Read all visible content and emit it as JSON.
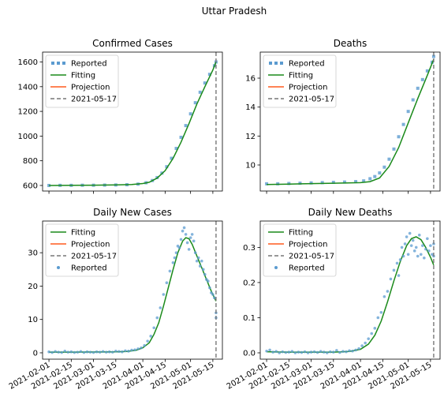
{
  "suptitle": "Uttar Pradesh",
  "colors": {
    "reported": "#5b9bd0",
    "fitting": "#1a8a1a",
    "projection": "#ff5a1f",
    "vline": "#777777"
  },
  "chart_data": [
    {
      "type": "line",
      "title": "Confirmed Cases",
      "xlim": [
        "2021-01-28",
        "2021-05-21"
      ],
      "ylim": [
        555,
        1680
      ],
      "yticks": [
        600,
        800,
        1000,
        1200,
        1400,
        1600
      ],
      "xticks": [
        "2021-02-01",
        "2021-02-15",
        "2021-03-01",
        "2021-03-15",
        "2021-04-01",
        "2021-04-15",
        "2021-05-01",
        "2021-05-15"
      ],
      "show_xtick_labels": false,
      "vline": "2021-05-17",
      "legend": {
        "placement": "top-left",
        "entries": [
          "Reported",
          "Fitting",
          "Projection",
          "2021-05-17"
        ]
      },
      "series": [
        {
          "name": "Reported",
          "style": "square-markers",
          "x": [
            "2021-02-01",
            "2021-02-08",
            "2021-02-15",
            "2021-02-22",
            "2021-03-01",
            "2021-03-08",
            "2021-03-15",
            "2021-03-22",
            "2021-03-29",
            "2021-04-03",
            "2021-04-07",
            "2021-04-10",
            "2021-04-13",
            "2021-04-16",
            "2021-04-19",
            "2021-04-22",
            "2021-04-25",
            "2021-04-28",
            "2021-05-01",
            "2021-05-04",
            "2021-05-07",
            "2021-05-10",
            "2021-05-13",
            "2021-05-16",
            "2021-05-17"
          ],
          "y": [
            600,
            601,
            601,
            602,
            602,
            603,
            604,
            606,
            611,
            622,
            640,
            664,
            700,
            752,
            820,
            900,
            990,
            1085,
            1180,
            1270,
            1355,
            1430,
            1500,
            1570,
            1600
          ]
        },
        {
          "name": "Fitting",
          "style": "line",
          "x": [
            "2021-02-01",
            "2021-02-15",
            "2021-03-01",
            "2021-03-15",
            "2021-03-25",
            "2021-04-01",
            "2021-04-05",
            "2021-04-10",
            "2021-04-15",
            "2021-04-20",
            "2021-04-25",
            "2021-04-30",
            "2021-05-05",
            "2021-05-10",
            "2021-05-15",
            "2021-05-17"
          ],
          "y": [
            600,
            601,
            602,
            604,
            608,
            616,
            626,
            660,
            720,
            820,
            950,
            1100,
            1260,
            1400,
            1535,
            1600
          ]
        },
        {
          "name": "Projection",
          "style": "line",
          "x": [],
          "y": []
        }
      ]
    },
    {
      "type": "line",
      "title": "Deaths",
      "xlim": [
        "2021-01-28",
        "2021-05-21"
      ],
      "ylim": [
        8.2,
        17.8
      ],
      "yticks": [
        10,
        12,
        14,
        16
      ],
      "xticks": [
        "2021-02-01",
        "2021-02-15",
        "2021-03-01",
        "2021-03-15",
        "2021-04-01",
        "2021-04-15",
        "2021-05-01",
        "2021-05-15"
      ],
      "show_xtick_labels": false,
      "vline": "2021-05-17",
      "legend": {
        "placement": "top-left",
        "entries": [
          "Reported",
          "Fitting",
          "Projection",
          "2021-05-17"
        ]
      },
      "series": [
        {
          "name": "Reported",
          "style": "square-markers",
          "x": [
            "2021-02-01",
            "2021-02-08",
            "2021-02-15",
            "2021-02-22",
            "2021-03-01",
            "2021-03-08",
            "2021-03-15",
            "2021-03-22",
            "2021-03-29",
            "2021-04-03",
            "2021-04-07",
            "2021-04-10",
            "2021-04-13",
            "2021-04-16",
            "2021-04-19",
            "2021-04-22",
            "2021-04-25",
            "2021-04-28",
            "2021-05-01",
            "2021-05-04",
            "2021-05-07",
            "2021-05-10",
            "2021-05-13",
            "2021-05-16",
            "2021-05-17"
          ],
          "y": [
            8.7,
            8.7,
            8.72,
            8.74,
            8.76,
            8.78,
            8.8,
            8.82,
            8.85,
            8.9,
            9.05,
            9.2,
            9.45,
            9.85,
            10.4,
            11.1,
            11.95,
            12.8,
            13.7,
            14.5,
            15.3,
            15.9,
            16.5,
            17.1,
            17.5
          ]
        },
        {
          "name": "Fitting",
          "style": "line",
          "x": [
            "2021-02-01",
            "2021-02-15",
            "2021-03-01",
            "2021-03-15",
            "2021-04-01",
            "2021-04-07",
            "2021-04-13",
            "2021-04-19",
            "2021-04-25",
            "2021-05-01",
            "2021-05-07",
            "2021-05-13",
            "2021-05-17"
          ],
          "y": [
            8.65,
            8.68,
            8.71,
            8.74,
            8.78,
            8.85,
            9.1,
            9.9,
            11.2,
            12.9,
            14.6,
            16.2,
            17.3
          ]
        },
        {
          "name": "Projection",
          "style": "line",
          "x": [],
          "y": []
        }
      ]
    },
    {
      "type": "line",
      "title": "Daily New Cases",
      "xlim": [
        "2021-01-28",
        "2021-05-21"
      ],
      "ylim": [
        -1.9,
        39.5
      ],
      "yticks": [
        0,
        10,
        20,
        30
      ],
      "xticks": [
        "2021-02-01",
        "2021-02-15",
        "2021-03-01",
        "2021-03-15",
        "2021-04-01",
        "2021-04-15",
        "2021-05-01",
        "2021-05-15"
      ],
      "show_xtick_labels": true,
      "vline": "2021-05-17",
      "legend": {
        "placement": "top-left",
        "entries": [
          "Fitting",
          "Projection",
          "2021-05-17",
          "Reported"
        ]
      },
      "series": [
        {
          "name": "Fitting",
          "style": "line",
          "x": [
            "2021-02-01",
            "2021-02-15",
            "2021-03-01",
            "2021-03-15",
            "2021-03-22",
            "2021-03-28",
            "2021-04-01",
            "2021-04-05",
            "2021-04-08",
            "2021-04-11",
            "2021-04-14",
            "2021-04-17",
            "2021-04-20",
            "2021-04-23",
            "2021-04-26",
            "2021-04-28",
            "2021-04-30",
            "2021-05-02",
            "2021-05-05",
            "2021-05-08",
            "2021-05-11",
            "2021-05-14",
            "2021-05-17"
          ],
          "y": [
            0.2,
            0.2,
            0.25,
            0.3,
            0.4,
            0.8,
            1.5,
            3.0,
            5.5,
            9.0,
            14.0,
            19.5,
            25.0,
            30.0,
            33.5,
            34.5,
            34.2,
            32.5,
            29.0,
            25.5,
            22.0,
            18.5,
            15.5
          ]
        },
        {
          "name": "Projection",
          "style": "line",
          "x": [],
          "y": []
        },
        {
          "name": "Reported",
          "style": "dots",
          "x": [
            "2021-02-01",
            "2021-02-03",
            "2021-02-05",
            "2021-02-07",
            "2021-02-09",
            "2021-02-11",
            "2021-02-13",
            "2021-02-15",
            "2021-02-17",
            "2021-02-19",
            "2021-02-21",
            "2021-02-23",
            "2021-02-25",
            "2021-02-27",
            "2021-03-01",
            "2021-03-03",
            "2021-03-05",
            "2021-03-07",
            "2021-03-09",
            "2021-03-11",
            "2021-03-13",
            "2021-03-15",
            "2021-03-17",
            "2021-03-19",
            "2021-03-21",
            "2021-03-23",
            "2021-03-25",
            "2021-03-27",
            "2021-03-29",
            "2021-03-31",
            "2021-04-02",
            "2021-04-04",
            "2021-04-06",
            "2021-04-08",
            "2021-04-10",
            "2021-04-12",
            "2021-04-14",
            "2021-04-16",
            "2021-04-18",
            "2021-04-20",
            "2021-04-21",
            "2021-04-22",
            "2021-04-23",
            "2021-04-24",
            "2021-04-25",
            "2021-04-26",
            "2021-04-27",
            "2021-04-28",
            "2021-04-29",
            "2021-04-30",
            "2021-05-01",
            "2021-05-02",
            "2021-05-03",
            "2021-05-04",
            "2021-05-05",
            "2021-05-06",
            "2021-05-07",
            "2021-05-08",
            "2021-05-09",
            "2021-05-10",
            "2021-05-11",
            "2021-05-12",
            "2021-05-13",
            "2021-05-14",
            "2021-05-15",
            "2021-05-16",
            "2021-05-17",
            "2021-05-17"
          ],
          "y": [
            0.3,
            0.1,
            0.4,
            0.2,
            0.1,
            0.5,
            0.2,
            0.3,
            0.1,
            0.2,
            0.4,
            0.1,
            0.3,
            0.2,
            0.1,
            0.3,
            0.2,
            0.4,
            0.2,
            0.3,
            0.2,
            0.5,
            0.4,
            0.3,
            0.6,
            0.5,
            0.8,
            0.9,
            1.2,
            1.5,
            2.2,
            3.5,
            5.0,
            7.5,
            10.5,
            13.5,
            17.5,
            21.0,
            24.5,
            27.0,
            28.5,
            30.0,
            32.0,
            31.5,
            34.0,
            36.5,
            37.5,
            35.5,
            33.0,
            31.0,
            34.5,
            35.5,
            33.5,
            30.0,
            27.5,
            28.5,
            26.0,
            27.5,
            25.0,
            23.5,
            22.0,
            21.5,
            19.5,
            18.0,
            17.5,
            16.5,
            12.0,
            10.5
          ]
        }
      ]
    },
    {
      "type": "line",
      "title": "Daily New Deaths",
      "xlim": [
        "2021-01-28",
        "2021-05-21"
      ],
      "ylim": [
        -0.018,
        0.375
      ],
      "yticks": [
        0.0,
        0.1,
        0.2,
        0.3
      ],
      "xticks": [
        "2021-02-01",
        "2021-02-15",
        "2021-03-01",
        "2021-03-15",
        "2021-04-01",
        "2021-04-15",
        "2021-05-01",
        "2021-05-15"
      ],
      "show_xtick_labels": true,
      "vline": "2021-05-17",
      "legend": {
        "placement": "top-left",
        "entries": [
          "Fitting",
          "Projection",
          "2021-05-17",
          "Reported"
        ]
      },
      "series": [
        {
          "name": "Fitting",
          "style": "line",
          "x": [
            "2021-02-01",
            "2021-02-15",
            "2021-03-01",
            "2021-03-15",
            "2021-03-25",
            "2021-04-01",
            "2021-04-06",
            "2021-04-10",
            "2021-04-14",
            "2021-04-18",
            "2021-04-22",
            "2021-04-26",
            "2021-04-30",
            "2021-05-03",
            "2021-05-06",
            "2021-05-09",
            "2021-05-12",
            "2021-05-15",
            "2021-05-17"
          ],
          "y": [
            0.003,
            0.002,
            0.002,
            0.002,
            0.004,
            0.01,
            0.025,
            0.05,
            0.09,
            0.145,
            0.205,
            0.26,
            0.305,
            0.325,
            0.33,
            0.322,
            0.3,
            0.272,
            0.25
          ]
        },
        {
          "name": "Projection",
          "style": "line",
          "x": [],
          "y": []
        },
        {
          "name": "Reported",
          "style": "dots",
          "x": [
            "2021-02-01",
            "2021-02-03",
            "2021-02-05",
            "2021-02-07",
            "2021-02-09",
            "2021-02-11",
            "2021-02-13",
            "2021-02-15",
            "2021-02-17",
            "2021-02-19",
            "2021-02-21",
            "2021-02-23",
            "2021-02-25",
            "2021-02-27",
            "2021-03-01",
            "2021-03-03",
            "2021-03-05",
            "2021-03-07",
            "2021-03-09",
            "2021-03-11",
            "2021-03-13",
            "2021-03-15",
            "2021-03-17",
            "2021-03-19",
            "2021-03-21",
            "2021-03-23",
            "2021-03-25",
            "2021-03-27",
            "2021-03-29",
            "2021-03-31",
            "2021-04-02",
            "2021-04-04",
            "2021-04-06",
            "2021-04-08",
            "2021-04-10",
            "2021-04-12",
            "2021-04-14",
            "2021-04-16",
            "2021-04-18",
            "2021-04-20",
            "2021-04-22",
            "2021-04-24",
            "2021-04-25",
            "2021-04-26",
            "2021-04-27",
            "2021-04-28",
            "2021-04-29",
            "2021-04-30",
            "2021-05-01",
            "2021-05-02",
            "2021-05-03",
            "2021-05-04",
            "2021-05-05",
            "2021-05-06",
            "2021-05-07",
            "2021-05-08",
            "2021-05-09",
            "2021-05-10",
            "2021-05-11",
            "2021-05-12",
            "2021-05-13",
            "2021-05-14",
            "2021-05-15",
            "2021-05-16",
            "2021-05-17",
            "2021-05-17"
          ],
          "y": [
            0.005,
            0.008,
            0.002,
            0.004,
            0.0,
            0.003,
            0.001,
            0.002,
            0.004,
            0.0,
            0.002,
            0.001,
            0.003,
            0.0,
            0.002,
            0.003,
            0.001,
            0.004,
            0.002,
            0.0,
            0.003,
            0.002,
            0.007,
            0.001,
            0.004,
            0.003,
            0.006,
            0.005,
            0.008,
            0.012,
            0.02,
            0.028,
            0.04,
            0.055,
            0.07,
            0.1,
            0.115,
            0.16,
            0.175,
            0.21,
            0.235,
            0.255,
            0.22,
            0.265,
            0.3,
            0.275,
            0.31,
            0.33,
            0.28,
            0.34,
            0.305,
            0.32,
            0.29,
            0.3,
            0.275,
            0.335,
            0.28,
            0.305,
            0.27,
            0.295,
            0.325,
            0.29,
            0.305,
            0.28,
            0.31,
            0.275
          ]
        }
      ]
    }
  ]
}
